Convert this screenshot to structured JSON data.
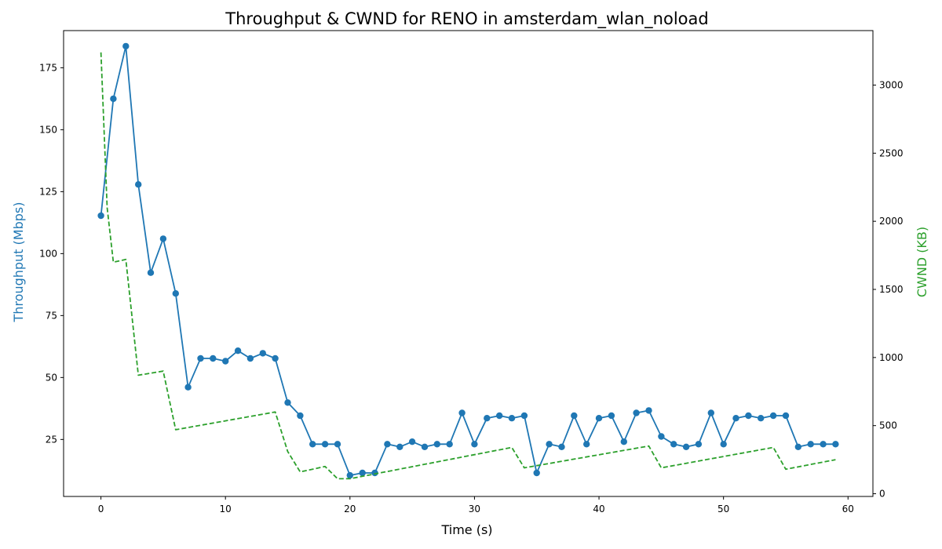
{
  "chart_data": {
    "type": "line",
    "title": "Throughput & CWND for RENO in amsterdam_wlan_noload",
    "xlabel": "Time (s)",
    "ylabel_left": "Throughput (Mbps)",
    "ylabel_right": "CWND (KB)",
    "xlim": [
      -3,
      62
    ],
    "ylim_left": [
      2,
      190
    ],
    "ylim_right": [
      -20,
      3400
    ],
    "x_ticks": [
      0,
      10,
      20,
      30,
      40,
      50,
      60
    ],
    "y_ticks_left": [
      25,
      50,
      75,
      100,
      125,
      150,
      175
    ],
    "y_ticks_right": [
      0,
      500,
      1000,
      1500,
      2000,
      2500,
      3000
    ],
    "grid": false,
    "colors": {
      "throughput": "#1f77b4",
      "cwnd": "#2ca02c",
      "axis": "#000000"
    },
    "series": [
      {
        "axis": "left",
        "style": "solid-marker",
        "x": [
          0,
          1,
          2,
          3,
          4,
          5,
          6,
          7,
          8,
          9,
          10,
          11,
          12,
          13,
          14,
          15,
          16,
          17,
          18,
          19,
          20,
          21,
          22,
          23,
          24,
          25,
          26,
          27,
          28,
          29,
          30,
          31,
          32,
          33,
          34,
          35,
          36,
          37,
          38,
          39,
          40,
          41,
          42,
          43,
          44,
          45,
          46,
          47,
          48,
          49,
          50,
          51,
          52,
          53,
          54,
          55,
          56,
          57,
          58,
          59
        ],
        "values": [
          115.3,
          162.5,
          183.7,
          127.9,
          92.3,
          106.0,
          83.9,
          46.1,
          57.7,
          57.7,
          56.6,
          60.8,
          57.7,
          59.8,
          57.7,
          39.9,
          34.6,
          23.1,
          23.1,
          23.1,
          10.5,
          11.5,
          11.5,
          23.1,
          22.0,
          24.1,
          22.0,
          23.1,
          23.1,
          35.7,
          23.1,
          33.6,
          34.6,
          33.6,
          34.6,
          11.5,
          23.1,
          22.0,
          34.6,
          23.1,
          33.6,
          34.6,
          24.1,
          35.7,
          36.7,
          26.2,
          23.1,
          22.0,
          23.1,
          35.7,
          23.1,
          33.6,
          34.6,
          33.6,
          34.6,
          34.6,
          22.0,
          23.1,
          23.1,
          23.1
        ]
      },
      {
        "axis": "right",
        "style": "dashed",
        "x": [
          0,
          0.5,
          1,
          2,
          3,
          5,
          6,
          14,
          15,
          16,
          18,
          19,
          20,
          33,
          34,
          44,
          45,
          54,
          55,
          59
        ],
        "values": [
          3240,
          2100,
          1700,
          1720,
          870,
          900,
          470,
          600,
          310,
          160,
          200,
          110,
          110,
          340,
          190,
          350,
          190,
          340,
          180,
          250
        ]
      }
    ]
  }
}
